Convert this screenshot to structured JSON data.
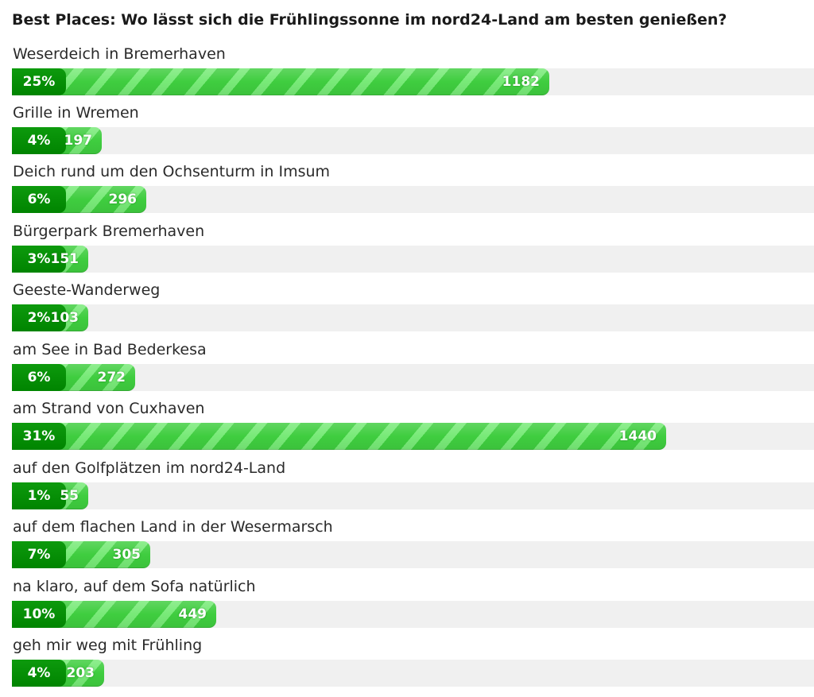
{
  "poll": {
    "title": "Best Places: Wo lässt sich die Frühlingssonne im nord24-Land am besten genießen?",
    "options": [
      {
        "label": "Weserdeich in Bremerhaven",
        "percent": "25%",
        "votes": "1182"
      },
      {
        "label": "Grille in Wremen",
        "percent": "4%",
        "votes": "197"
      },
      {
        "label": "Deich rund um den Ochsenturm in Imsum",
        "percent": "6%",
        "votes": "296"
      },
      {
        "label": "Bürgerpark Bremerhaven",
        "percent": "3%",
        "votes": "151"
      },
      {
        "label": "Geeste-Wanderweg",
        "percent": "2%",
        "votes": "103"
      },
      {
        "label": "am See in Bad Bederkesa",
        "percent": "6%",
        "votes": "272"
      },
      {
        "label": "am Strand von Cuxhaven",
        "percent": "31%",
        "votes": "1440"
      },
      {
        "label": "auf den Golfplätzen im nord24-Land",
        "percent": "1%",
        "votes": "55"
      },
      {
        "label": "auf dem flachen Land in der Wesermarsch",
        "percent": "7%",
        "votes": "305"
      },
      {
        "label": "na klaro, auf dem Sofa natürlich",
        "percent": "10%",
        "votes": "449"
      },
      {
        "label": "geh mir weg mit Frühling",
        "percent": "4%",
        "votes": "203"
      }
    ]
  }
}
